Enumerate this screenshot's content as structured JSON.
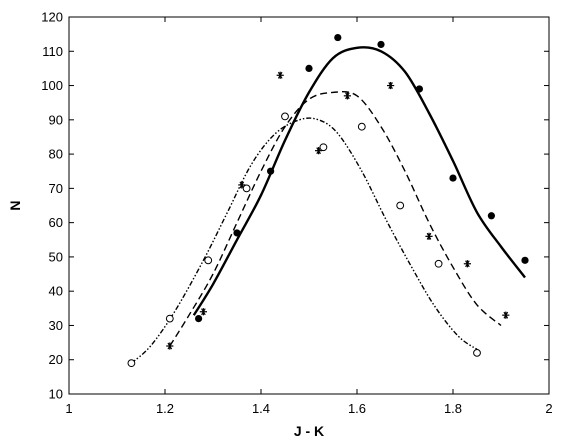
{
  "chart_data": {
    "type": "scatter",
    "title": "",
    "xlabel": "J - K",
    "ylabel": "N",
    "xlim": [
      1,
      2
    ],
    "ylim": [
      10,
      120
    ],
    "x_ticks": [
      "1",
      "1.2",
      "1.4",
      "1.6",
      "1.8",
      "2"
    ],
    "y_ticks": [
      "10",
      "20",
      "30",
      "40",
      "50",
      "60",
      "70",
      "80",
      "90",
      "100",
      "110",
      "120"
    ],
    "grid": false,
    "legend": "none",
    "series": [
      {
        "marker": "filled-circle",
        "points": [
          [
            1.27,
            32
          ],
          [
            1.35,
            57
          ],
          [
            1.42,
            75
          ],
          [
            1.5,
            105
          ],
          [
            1.56,
            114
          ],
          [
            1.65,
            112
          ],
          [
            1.73,
            99
          ],
          [
            1.8,
            73
          ],
          [
            1.88,
            62
          ],
          [
            1.95,
            49
          ]
        ],
        "fit_line": "solid",
        "fit": [
          [
            1.26,
            33
          ],
          [
            1.3,
            42
          ],
          [
            1.35,
            55
          ],
          [
            1.4,
            68
          ],
          [
            1.45,
            84
          ],
          [
            1.5,
            98
          ],
          [
            1.55,
            108
          ],
          [
            1.6,
            111
          ],
          [
            1.65,
            110
          ],
          [
            1.7,
            104
          ],
          [
            1.75,
            92
          ],
          [
            1.8,
            78
          ],
          [
            1.85,
            63
          ],
          [
            1.9,
            53
          ],
          [
            1.95,
            44
          ]
        ]
      },
      {
        "marker": "asterisk",
        "points": [
          [
            1.21,
            24
          ],
          [
            1.28,
            34
          ],
          [
            1.36,
            71
          ],
          [
            1.44,
            103
          ],
          [
            1.52,
            81
          ],
          [
            1.58,
            97
          ],
          [
            1.67,
            100
          ],
          [
            1.75,
            56
          ],
          [
            1.83,
            48
          ],
          [
            1.91,
            33
          ]
        ],
        "fit_line": "dashed",
        "fit": [
          [
            1.21,
            24
          ],
          [
            1.25,
            33
          ],
          [
            1.3,
            45
          ],
          [
            1.35,
            60
          ],
          [
            1.4,
            75
          ],
          [
            1.45,
            88
          ],
          [
            1.5,
            96
          ],
          [
            1.55,
            98
          ],
          [
            1.6,
            97
          ],
          [
            1.65,
            88
          ],
          [
            1.7,
            75
          ],
          [
            1.75,
            60
          ],
          [
            1.8,
            47
          ],
          [
            1.85,
            36
          ],
          [
            1.9,
            30
          ]
        ]
      },
      {
        "marker": "open-circle",
        "points": [
          [
            1.13,
            19
          ],
          [
            1.21,
            32
          ],
          [
            1.29,
            49
          ],
          [
            1.37,
            70
          ],
          [
            1.45,
            91
          ],
          [
            1.53,
            82
          ],
          [
            1.61,
            88
          ],
          [
            1.69,
            65
          ],
          [
            1.77,
            48
          ],
          [
            1.85,
            22
          ]
        ],
        "fit_line": "dash-dot",
        "fit": [
          [
            1.13,
            19
          ],
          [
            1.17,
            24
          ],
          [
            1.22,
            34
          ],
          [
            1.28,
            49
          ],
          [
            1.33,
            63
          ],
          [
            1.38,
            77
          ],
          [
            1.43,
            86
          ],
          [
            1.48,
            90
          ],
          [
            1.52,
            90
          ],
          [
            1.56,
            86
          ],
          [
            1.61,
            75
          ],
          [
            1.66,
            61
          ],
          [
            1.71,
            48
          ],
          [
            1.76,
            36
          ],
          [
            1.81,
            27
          ],
          [
            1.85,
            23
          ]
        ]
      }
    ]
  }
}
